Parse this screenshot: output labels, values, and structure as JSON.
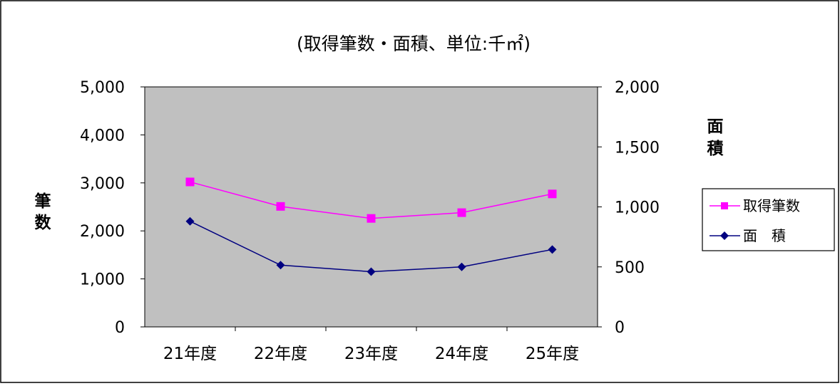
{
  "chart_data": {
    "type": "line",
    "title": "(取得筆数・面積、単位:千㎡)",
    "categories": [
      "21年度",
      "22年度",
      "23年度",
      "24年度",
      "25年度"
    ],
    "y_left": {
      "label": [
        "筆",
        "数"
      ],
      "range": [
        0,
        5000
      ],
      "ticks": [
        "0",
        "1,000",
        "2,000",
        "3,000",
        "4,000",
        "5,000"
      ],
      "tick_values": [
        0,
        1000,
        2000,
        3000,
        4000,
        5000
      ]
    },
    "y_right": {
      "label": [
        "面",
        "積"
      ],
      "range": [
        0,
        2000
      ],
      "ticks": [
        "0",
        "500",
        "1,000",
        "1,500",
        "2,000"
      ],
      "tick_values": [
        0,
        500,
        1000,
        1500,
        2000
      ]
    },
    "series": [
      {
        "name": "取得筆数",
        "axis": "left",
        "color": "#ff00ff",
        "marker": "square",
        "values": [
          3020,
          2510,
          2260,
          2380,
          2770
        ]
      },
      {
        "name": "面　積",
        "axis": "right",
        "color": "#000080",
        "marker": "diamond",
        "values": [
          880,
          515,
          460,
          500,
          645
        ]
      }
    ],
    "plot_background": "#c0c0c0",
    "grid": false,
    "legend_position": "right"
  }
}
